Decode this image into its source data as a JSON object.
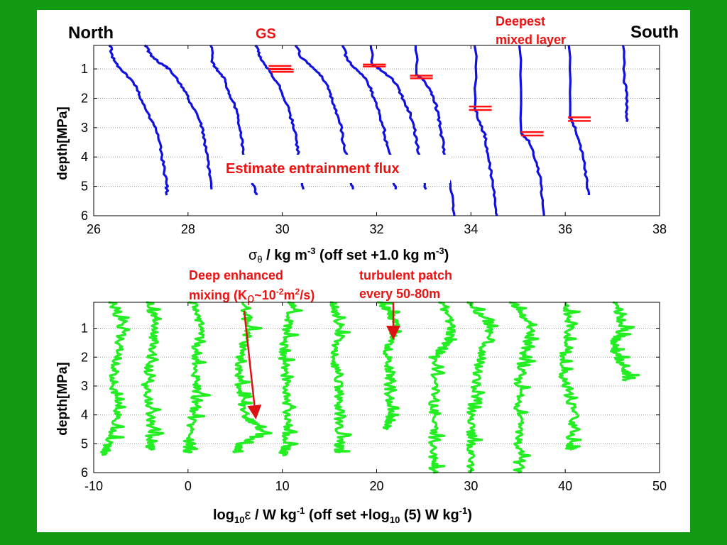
{
  "labels": {
    "north": "North",
    "south": "South",
    "gs": "GS",
    "deepest_mixed_layer": [
      "Deepest",
      "mixed layer"
    ],
    "entrainment": "Estimate entrainment flux",
    "deep_mixing_line1": "Deep enhanced",
    "deep_mixing_line2_prefix": "mixing (K",
    "deep_mixing_rho": "ρ",
    "deep_mixing_tilde": "~10",
    "deep_mixing_exp": "-2",
    "deep_mixing_unit": "m",
    "deep_mixing_unit_exp": "2",
    "deep_mixing_tail": "/s)",
    "turbulent_patch": [
      "turbulent patch",
      "every 50-80m"
    ]
  },
  "colors": {
    "background": "#129a12",
    "density_profiles": "#1010e0",
    "dissipation_profiles": "#22ee22",
    "mixed_layer_markers": "#ff1010",
    "annotation_text": "#ee1111"
  },
  "chart_data": [
    {
      "type": "line",
      "xlabel": {
        "sym": "σ",
        "sub": "θ",
        "unit": " / kg m",
        "unit_exp": "-3",
        "tail": " (off set +1.0 kg m",
        "tail_exp": "-3",
        "close": ")"
      },
      "ylabel": "depth[MPa]",
      "xlim": [
        26,
        38
      ],
      "ylim": [
        6,
        0.2
      ],
      "xticks": [
        26,
        28,
        30,
        32,
        34,
        36,
        38
      ],
      "yticks": [
        1,
        2,
        3,
        4,
        5,
        6
      ],
      "grid": "y",
      "series": [
        {
          "values": [
            [
              26.35,
              0.2
            ],
            [
              26.4,
              0.6
            ],
            [
              26.5,
              0.9
            ],
            [
              26.7,
              1.2
            ],
            [
              26.9,
              1.6
            ],
            [
              27.0,
              2.0
            ],
            [
              27.15,
              2.5
            ],
            [
              27.3,
              3.0
            ],
            [
              27.4,
              3.5
            ],
            [
              27.45,
              4.0
            ],
            [
              27.5,
              4.5
            ],
            [
              27.55,
              5.0
            ],
            [
              27.55,
              5.3
            ]
          ]
        },
        {
          "values": [
            [
              27.1,
              0.2
            ],
            [
              27.2,
              0.5
            ],
            [
              27.4,
              0.8
            ],
            [
              27.6,
              1.0
            ],
            [
              27.8,
              1.4
            ],
            [
              27.95,
              1.8
            ],
            [
              28.05,
              2.2
            ],
            [
              28.2,
              2.6
            ],
            [
              28.3,
              3.0
            ],
            [
              28.35,
              3.5
            ],
            [
              28.4,
              4.0
            ],
            [
              28.45,
              4.5
            ],
            [
              28.5,
              5.1
            ]
          ]
        },
        {
          "values": [
            [
              28.5,
              0.2
            ],
            [
              28.5,
              0.7
            ],
            [
              28.6,
              1.0
            ],
            [
              28.75,
              1.3
            ],
            [
              28.85,
              1.7
            ],
            [
              28.95,
              2.1
            ],
            [
              29.05,
              2.5
            ],
            [
              29.1,
              3.0
            ],
            [
              29.15,
              3.5
            ],
            [
              29.2,
              4.0
            ],
            [
              29.3,
              4.5
            ],
            [
              29.4,
              5.0
            ],
            [
              29.45,
              5.3
            ]
          ]
        },
        {
          "values": [
            [
              29.45,
              0.2
            ],
            [
              29.5,
              0.5
            ],
            [
              29.6,
              0.8
            ],
            [
              29.75,
              1.1
            ],
            [
              29.9,
              1.5
            ],
            [
              30.05,
              2.0
            ],
            [
              30.15,
              2.5
            ],
            [
              30.25,
              3.0
            ],
            [
              30.3,
              3.5
            ],
            [
              30.35,
              4.0
            ],
            [
              30.4,
              4.6
            ],
            [
              30.45,
              5.1
            ]
          ]
        },
        {
          "values": [
            [
              30.3,
              0.2
            ],
            [
              30.4,
              0.6
            ],
            [
              30.6,
              0.9
            ],
            [
              30.8,
              1.2
            ],
            [
              30.95,
              1.6
            ],
            [
              31.05,
              2.0
            ],
            [
              31.15,
              2.5
            ],
            [
              31.25,
              3.0
            ],
            [
              31.3,
              3.6
            ],
            [
              31.4,
              4.2
            ],
            [
              31.45,
              4.8
            ],
            [
              31.5,
              5.1
            ]
          ]
        },
        {
          "values": [
            [
              31.3,
              0.2
            ],
            [
              31.35,
              0.6
            ],
            [
              31.5,
              0.9
            ],
            [
              31.7,
              1.2
            ],
            [
              31.85,
              1.6
            ],
            [
              31.95,
              2.0
            ],
            [
              32.05,
              2.5
            ],
            [
              32.15,
              3.0
            ],
            [
              32.2,
              3.5
            ],
            [
              32.3,
              4.0
            ],
            [
              32.35,
              4.6
            ],
            [
              32.4,
              5.1
            ]
          ]
        },
        {
          "values": [
            [
              31.9,
              0.2
            ],
            [
              31.9,
              0.85
            ],
            [
              32.05,
              1.0
            ],
            [
              32.3,
              1.3
            ],
            [
              32.45,
              1.6
            ],
            [
              32.55,
              2.0
            ],
            [
              32.7,
              2.5
            ],
            [
              32.8,
              3.0
            ],
            [
              32.85,
              3.5
            ],
            [
              32.9,
              4.0
            ],
            [
              32.95,
              4.6
            ],
            [
              33.05,
              5.1
            ]
          ]
        },
        {
          "values": [
            [
              32.85,
              0.2
            ],
            [
              32.85,
              1.2
            ],
            [
              33.0,
              1.4
            ],
            [
              33.15,
              1.8
            ],
            [
              33.25,
              2.2
            ],
            [
              33.3,
              2.6
            ],
            [
              33.35,
              3.0
            ],
            [
              33.4,
              3.5
            ],
            [
              33.45,
              4.0
            ],
            [
              33.5,
              4.6
            ],
            [
              33.6,
              5.3
            ],
            [
              33.65,
              6.0
            ]
          ]
        },
        {
          "values": [
            [
              34.1,
              0.2
            ],
            [
              34.1,
              2.4
            ],
            [
              34.2,
              2.9
            ],
            [
              34.3,
              3.3
            ],
            [
              34.35,
              3.8
            ],
            [
              34.4,
              4.3
            ],
            [
              34.45,
              4.8
            ],
            [
              34.5,
              5.4
            ],
            [
              34.55,
              6.0
            ]
          ]
        },
        {
          "values": [
            [
              35.05,
              0.2
            ],
            [
              35.05,
              3.2
            ],
            [
              35.25,
              3.5
            ],
            [
              35.35,
              4.0
            ],
            [
              35.45,
              4.6
            ],
            [
              35.5,
              5.2
            ],
            [
              35.55,
              6.0
            ]
          ]
        },
        {
          "values": [
            [
              36.1,
              0.2
            ],
            [
              36.1,
              2.6
            ],
            [
              36.2,
              3.0
            ],
            [
              36.3,
              3.5
            ],
            [
              36.4,
              4.2
            ],
            [
              36.45,
              4.8
            ],
            [
              36.5,
              5.3
            ]
          ]
        },
        {
          "values": [
            [
              37.25,
              0.2
            ],
            [
              37.25,
              1.4
            ],
            [
              37.3,
              1.8
            ],
            [
              37.3,
              2.4
            ],
            [
              37.3,
              2.8
            ]
          ]
        }
      ],
      "mixed_layer_markers": [
        {
          "x": 29.95,
          "y": 0.9
        },
        {
          "x": 29.95,
          "y": 1.0
        },
        {
          "x": 30.0,
          "y": 1.02
        },
        {
          "x": 30.0,
          "y": 1.1
        },
        {
          "x": 31.95,
          "y": 0.85
        },
        {
          "x": 31.95,
          "y": 0.92
        },
        {
          "x": 32.95,
          "y": 1.23
        },
        {
          "x": 32.95,
          "y": 1.32
        },
        {
          "x": 34.2,
          "y": 2.28
        },
        {
          "x": 34.2,
          "y": 2.4
        },
        {
          "x": 35.3,
          "y": 3.15
        },
        {
          "x": 35.3,
          "y": 3.27
        },
        {
          "x": 36.3,
          "y": 2.65
        },
        {
          "x": 36.3,
          "y": 2.77
        }
      ]
    },
    {
      "type": "line",
      "xlabel": {
        "pre": "log",
        "sub": "10",
        "sym": "ε",
        "unit": " / W kg",
        "unit_exp": "-1",
        "tail": " (off set +log",
        "tail_sub": "10",
        "tail2": " (5) W kg",
        "tail_exp": "-1",
        "close": ")"
      },
      "ylabel": "depth[MPa]",
      "xlim": [
        -10,
        50
      ],
      "ylim": [
        6,
        0.1
      ],
      "xticks": [
        -10,
        0,
        10,
        20,
        30,
        40,
        50
      ],
      "yticks": [
        1,
        2,
        3,
        4,
        5,
        6
      ],
      "grid": "y",
      "series": [
        {
          "values": [
            [
              -8.0,
              0.1
            ],
            [
              -7.0,
              1.0
            ],
            [
              -7.5,
              2.0
            ],
            [
              -8.0,
              3.0
            ],
            [
              -7.5,
              4.0
            ],
            [
              -8.5,
              5.0
            ],
            [
              -9.0,
              5.4
            ]
          ]
        },
        {
          "values": [
            [
              -4.0,
              0.1
            ],
            [
              -3.5,
              1.0
            ],
            [
              -4.0,
              2.0
            ],
            [
              -4.5,
              3.0
            ],
            [
              -4.0,
              4.0
            ],
            [
              -4.0,
              5.0
            ],
            [
              -4.0,
              5.2
            ]
          ]
        },
        {
          "values": [
            [
              0.5,
              0.1
            ],
            [
              1.5,
              1.0
            ],
            [
              0.5,
              2.0
            ],
            [
              1.0,
              3.0
            ],
            [
              0.5,
              4.0
            ],
            [
              0.0,
              5.0
            ],
            [
              0.0,
              5.3
            ]
          ]
        },
        {
          "values": [
            [
              5.5,
              0.1
            ],
            [
              6.5,
              1.0
            ],
            [
              5.5,
              2.0
            ],
            [
              5.5,
              3.0
            ],
            [
              6.0,
              4.0
            ],
            [
              8.0,
              4.6
            ],
            [
              5.5,
              5.0
            ],
            [
              5.0,
              5.3
            ]
          ]
        },
        {
          "values": [
            [
              11.0,
              0.1
            ],
            [
              10.5,
              1.0
            ],
            [
              10.0,
              2.0
            ],
            [
              10.5,
              3.0
            ],
            [
              10.5,
              4.0
            ],
            [
              10.5,
              5.0
            ],
            [
              10.0,
              5.4
            ]
          ]
        },
        {
          "values": [
            [
              15.5,
              0.1
            ],
            [
              16.0,
              1.0
            ],
            [
              15.5,
              2.0
            ],
            [
              16.0,
              3.0
            ],
            [
              16.0,
              4.0
            ],
            [
              16.0,
              5.0
            ],
            [
              16.0,
              5.3
            ]
          ]
        },
        {
          "values": [
            [
              20.5,
              0.1
            ],
            [
              21.5,
              0.5
            ],
            [
              22.0,
              1.0
            ],
            [
              21.0,
              1.8
            ],
            [
              21.5,
              2.6
            ],
            [
              21.0,
              3.3
            ],
            [
              21.5,
              4.0
            ],
            [
              21.0,
              4.5
            ]
          ]
        },
        {
          "values": [
            [
              27.0,
              0.1
            ],
            [
              28.0,
              1.0
            ],
            [
              27.5,
              1.5
            ],
            [
              26.0,
              2.0
            ],
            [
              26.0,
              3.5
            ],
            [
              26.0,
              4.5
            ],
            [
              26.0,
              5.5
            ],
            [
              26.0,
              6.0
            ]
          ]
        },
        {
          "values": [
            [
              30.0,
              0.1
            ],
            [
              32.0,
              1.0
            ],
            [
              31.0,
              2.0
            ],
            [
              30.5,
              3.0
            ],
            [
              30.0,
              4.0
            ],
            [
              30.0,
              5.0
            ],
            [
              30.0,
              6.0
            ]
          ]
        },
        {
          "values": [
            [
              34.5,
              0.1
            ],
            [
              36.5,
              1.0
            ],
            [
              35.5,
              2.0
            ],
            [
              35.0,
              3.0
            ],
            [
              35.0,
              4.0
            ],
            [
              35.0,
              5.0
            ],
            [
              35.0,
              6.0
            ]
          ]
        },
        {
          "values": [
            [
              40.0,
              0.1
            ],
            [
              40.5,
              1.0
            ],
            [
              39.5,
              2.0
            ],
            [
              40.0,
              3.0
            ],
            [
              41.0,
              4.0
            ],
            [
              40.5,
              5.0
            ],
            [
              40.5,
              5.2
            ]
          ]
        },
        {
          "values": [
            [
              45.5,
              0.1
            ],
            [
              46.0,
              1.0
            ],
            [
              45.0,
              1.5
            ],
            [
              45.5,
              2.0
            ],
            [
              46.5,
              2.5
            ],
            [
              46.5,
              2.8
            ]
          ]
        }
      ]
    }
  ]
}
